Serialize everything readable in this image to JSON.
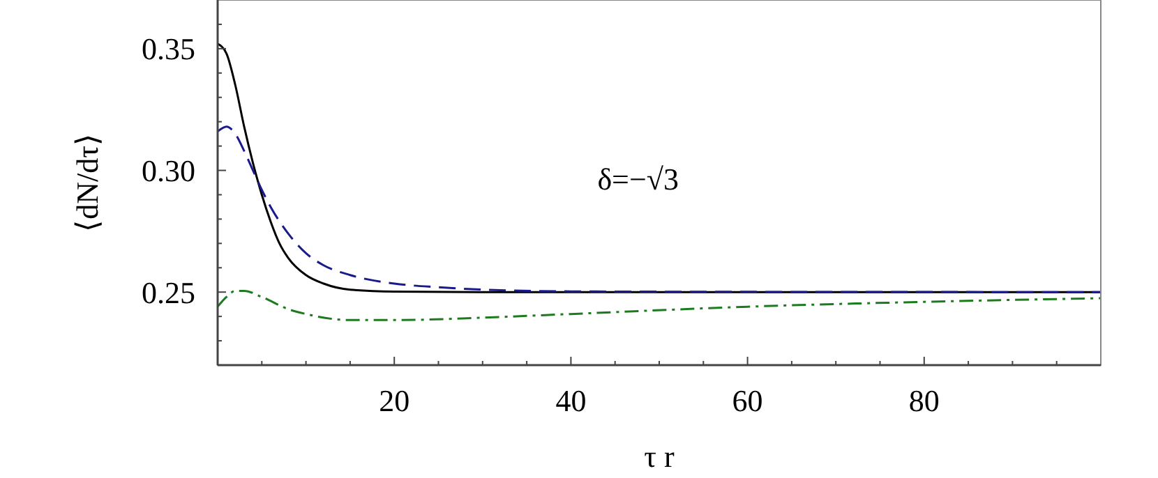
{
  "chart_data": {
    "type": "line",
    "xlabel": "τ r",
    "ylabel": "⟨dN/dτ⟩",
    "annotations": [
      "δ=−√3"
    ],
    "xlim": [
      0,
      100
    ],
    "ylim": [
      0.22,
      0.37
    ],
    "xticks": [
      {
        "value": 5,
        "label": null
      },
      {
        "value": 10,
        "label": null
      },
      {
        "value": 15,
        "label": null
      },
      20,
      {
        "value": 25,
        "label": null
      },
      {
        "value": 30,
        "label": null
      },
      {
        "value": 35,
        "label": null
      },
      40,
      {
        "value": 45,
        "label": null
      },
      {
        "value": 50,
        "label": null
      },
      {
        "value": 55,
        "label": null
      },
      60,
      {
        "value": 65,
        "label": null
      },
      {
        "value": 70,
        "label": null
      },
      {
        "value": 75,
        "label": null
      },
      80,
      {
        "value": 85,
        "label": null
      },
      {
        "value": 90,
        "label": null
      },
      {
        "value": 95,
        "label": null
      }
    ],
    "yticks": [
      {
        "value": 0.23,
        "label": null
      },
      {
        "value": 0.24,
        "label": null
      },
      {
        "value": 0.25,
        "label": "0.25"
      },
      {
        "value": 0.26,
        "label": null
      },
      {
        "value": 0.27,
        "label": null
      },
      {
        "value": 0.28,
        "label": null
      },
      {
        "value": 0.29,
        "label": null
      },
      {
        "value": 0.3,
        "label": "0.30"
      },
      {
        "value": 0.31,
        "label": null
      },
      {
        "value": 0.32,
        "label": null
      },
      {
        "value": 0.33,
        "label": null
      },
      {
        "value": 0.34,
        "label": null
      },
      {
        "value": 0.35,
        "label": "0.35"
      },
      {
        "value": 0.36,
        "label": null
      }
    ],
    "grid": false,
    "marker": "none",
    "series": [
      {
        "color": "#000000",
        "line_style": "solid",
        "x": [
          0,
          1,
          2,
          3,
          4,
          5,
          6,
          7,
          8,
          10,
          12,
          15,
          20,
          30,
          100
        ],
        "values": [
          0.352,
          0.348,
          0.335,
          0.318,
          0.303,
          0.29,
          0.279,
          0.27,
          0.264,
          0.257,
          0.2535,
          0.251,
          0.2502,
          0.25,
          0.25
        ]
      },
      {
        "color": "#1a1a8c",
        "line_style": "dashed",
        "x": [
          0,
          1,
          2,
          3,
          4,
          5,
          6,
          8,
          10,
          12,
          15,
          20,
          25,
          30,
          40,
          60,
          100
        ],
        "values": [
          0.316,
          0.318,
          0.315,
          0.308,
          0.3,
          0.292,
          0.285,
          0.274,
          0.266,
          0.261,
          0.257,
          0.2535,
          0.252,
          0.251,
          0.2503,
          0.2501,
          0.25
        ]
      },
      {
        "color": "#1e7a1e",
        "line_style": "dashdot",
        "x": [
          0,
          1,
          2,
          3,
          5,
          8,
          10,
          15,
          20,
          30,
          40,
          60,
          80,
          100
        ],
        "values": [
          0.244,
          0.248,
          0.2505,
          0.2505,
          0.248,
          0.243,
          0.241,
          0.2385,
          0.2385,
          0.2395,
          0.241,
          0.244,
          0.246,
          0.2475
        ]
      }
    ]
  }
}
